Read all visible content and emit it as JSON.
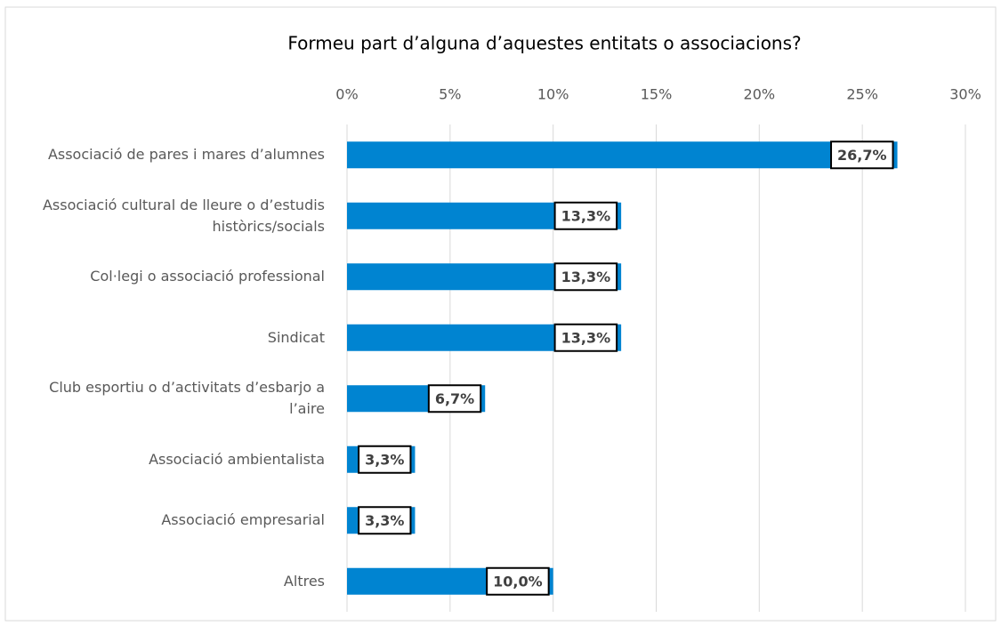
{
  "chart_data": {
    "type": "barh",
    "title": "Formeu part d’alguna d’aquestes entitats o associacions?",
    "categories": [
      "Associació de pares i mares d’alumnes",
      "Associació cultural de lleure o d’estudis històrics/socials",
      "Col·legi o associació professional",
      "Sindicat",
      "Club esportiu o d’activitats d’esbarjo a l’aire",
      "Associació ambientalista",
      "Associació empresarial",
      "Altres"
    ],
    "values": [
      26.7,
      13.3,
      13.3,
      13.3,
      6.7,
      3.3,
      3.3,
      10.0
    ],
    "value_labels": [
      "26,7%",
      "13,3%",
      "13,3%",
      "13,3%",
      "6,7%",
      "3,3%",
      "3,3%",
      "10,0%"
    ],
    "color": "#0084d1",
    "xlim": [
      0,
      30
    ],
    "xticks": [
      {
        "value": 0,
        "label": "0%"
      },
      {
        "value": 5,
        "label": "5%"
      },
      {
        "value": 10,
        "label": "10%"
      },
      {
        "value": 15,
        "label": "15%"
      },
      {
        "value": 20,
        "label": "20%"
      },
      {
        "value": 25,
        "label": "25%"
      },
      {
        "value": 30,
        "label": "30%"
      }
    ],
    "grid": true
  }
}
